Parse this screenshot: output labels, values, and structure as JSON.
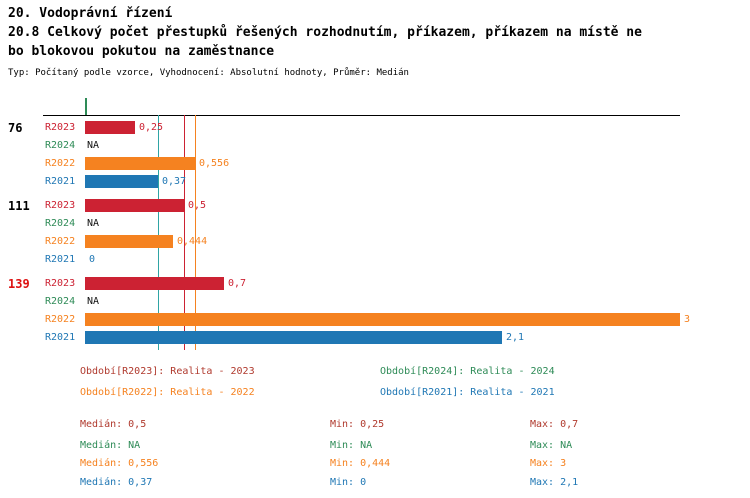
{
  "header": {
    "title": "20. Vodoprávní řízení",
    "subtitle_line1": "20.8 Celkový počet přestupků řešených rozhodnutím, příkazem, příkazem na místě ne",
    "subtitle_line2": "bo blokovou pokutou na zaměstnance",
    "meta": "Typ: Počítaný podle vzorce, Vyhodnocení: Absolutní hodnoty, Průměr: Medián"
  },
  "chart_data": {
    "type": "bar",
    "orientation": "horizontal",
    "title": "20.8 Celkový počet přestupků řešených rozhodnutím, příkazem, příkazem na místě nebo blokovou pokutou na zaměstnance",
    "axis": {
      "min": 0,
      "max": 3
    },
    "series_colors": {
      "R2023": "#CC2233",
      "R2024": "#2E8B57",
      "R2022": "#F58220",
      "R2021": "#1F77B4"
    },
    "groups": [
      {
        "label": "76",
        "label_color": "#000000",
        "bars": [
          {
            "series": "R2023",
            "value": 0.25,
            "display": "0,25"
          },
          {
            "series": "R2024",
            "value": null,
            "display": "NA"
          },
          {
            "series": "R2022",
            "value": 0.556,
            "display": "0,556"
          },
          {
            "series": "R2021",
            "value": 0.37,
            "display": "0,37"
          }
        ]
      },
      {
        "label": "111",
        "label_color": "#000000",
        "bars": [
          {
            "series": "R2023",
            "value": 0.5,
            "display": "0,5"
          },
          {
            "series": "R2024",
            "value": null,
            "display": "NA"
          },
          {
            "series": "R2022",
            "value": 0.444,
            "display": "0,444"
          },
          {
            "series": "R2021",
            "value": 0,
            "display": "0"
          }
        ]
      },
      {
        "label": "139",
        "label_color": "#DD1111",
        "bars": [
          {
            "series": "R2023",
            "value": 0.7,
            "display": "0,7"
          },
          {
            "series": "R2024",
            "value": null,
            "display": "NA"
          },
          {
            "series": "R2022",
            "value": 3,
            "display": "3"
          },
          {
            "series": "R2021",
            "value": 2.1,
            "display": "2,1"
          }
        ]
      }
    ],
    "median_lines": [
      {
        "series": "R2021",
        "value": 0.37,
        "color": "#2FA4A4"
      },
      {
        "series": "R2023",
        "value": 0.5,
        "color": "#CC2233"
      },
      {
        "series": "R2022",
        "value": 0.556,
        "color": "#F58220"
      }
    ],
    "zero_tick_color": "#2E8B57",
    "na_label_color": "#111111"
  },
  "legend": {
    "items": [
      {
        "label": "Období[R2023]: Realita - 2023",
        "color": "#B03A2E"
      },
      {
        "label": "Období[R2024]: Realita - 2024",
        "color": "#2E8B57"
      },
      {
        "label": "Období[R2022]: Realita - 2022",
        "color": "#F58220"
      },
      {
        "label": "Období[R2021]: Realita - 2021",
        "color": "#1F77B4"
      }
    ]
  },
  "stats": {
    "rows": [
      {
        "series": "R2023",
        "color": "#B03A2E",
        "median": "Medián: 0,5",
        "min": "Min: 0,25",
        "max": "Max: 0,7"
      },
      {
        "series": "R2024",
        "color": "#2E8B57",
        "median": "Medián: NA",
        "min": "Min: NA",
        "max": "Max: NA"
      },
      {
        "series": "R2022",
        "color": "#F58220",
        "median": "Medián: 0,556",
        "min": "Min: 0,444",
        "max": "Max: 3"
      },
      {
        "series": "R2021",
        "color": "#1F77B4",
        "median": "Medián: 0,37",
        "min": "Min: 0",
        "max": "Max: 2,1"
      }
    ]
  }
}
